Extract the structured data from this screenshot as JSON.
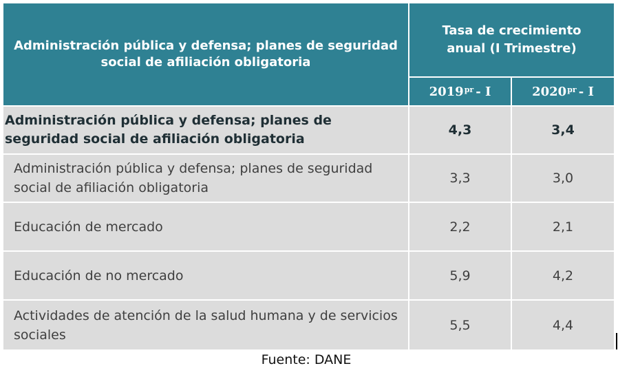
{
  "table": {
    "header_main": "Administración pública y defensa; planes de seguridad social de afiliación obligatoria",
    "header_group": "Tasa de crecimiento anual (I Trimestre)",
    "years": [
      {
        "year": "2019",
        "sup": "pr",
        "suffix": "- I"
      },
      {
        "year": "2020",
        "sup": "pr",
        "suffix": "- I"
      }
    ],
    "rows": [
      {
        "label": "Administración pública y defensa; planes de seguridad social de afiliación obligatoria",
        "v2019": "4,3",
        "v2020": "3,4"
      },
      {
        "label": "Administración pública y defensa; planes de seguridad social de afiliación obligatoria",
        "v2019": "3,3",
        "v2020": "3,0"
      },
      {
        "label": "Educación de mercado",
        "v2019": "2,2",
        "v2020": "2,1"
      },
      {
        "label": "Educación de no mercado",
        "v2019": "5,9",
        "v2020": "4,2"
      },
      {
        "label": "Actividades de atención de la salud humana y de servicios sociales",
        "v2019": "5,5",
        "v2020": "4,4"
      }
    ]
  },
  "source": "Fuente: DANE",
  "colors": {
    "header_bg": "#2f8193",
    "header_text": "#ffffff",
    "cell_bg": "#dcdcdc",
    "cell_text": "#3f3f3f"
  }
}
